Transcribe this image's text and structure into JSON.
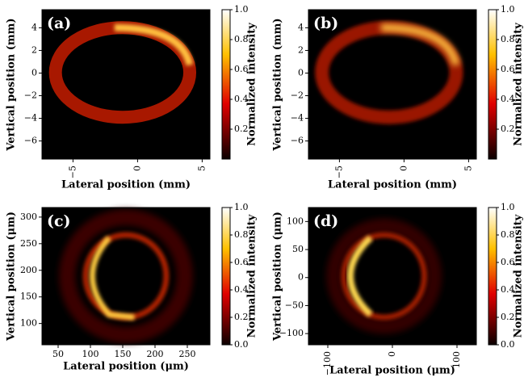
{
  "chart_data": [
    {
      "type": "heatmap",
      "panel_label": "(a)",
      "xlabel": "Lateral position (mm)",
      "ylabel": "Vertical position (mm)",
      "xlim": [
        -7.4,
        5.6
      ],
      "xticks": [
        {
          "value": -5,
          "label": "−5"
        },
        0,
        5
      ],
      "xtick_rotation": 90,
      "ylim": [
        -7.6,
        5.6
      ],
      "yticks": [
        {
          "value": -6,
          "label": "−6"
        },
        {
          "value": -4,
          "label": "−4"
        },
        {
          "value": -2,
          "label": "−2"
        },
        0,
        2,
        4
      ],
      "colorbar_label": "Normalized intensity",
      "clim": [
        0,
        1
      ],
      "cticks": [
        0.2,
        0.4,
        0.6,
        0.8,
        {
          "value": 1,
          "label": "1.0"
        }
      ],
      "colormap": "hot"
    },
    {
      "type": "heatmap",
      "panel_label": "(b)",
      "xlabel": "Lateral position (mm)",
      "ylabel": "Vertical position (mm)",
      "xlim": [
        -7.4,
        5.6
      ],
      "xticks": [
        {
          "value": -5,
          "label": "−5"
        },
        0,
        5
      ],
      "xtick_rotation": 90,
      "ylim": [
        -7.6,
        5.6
      ],
      "yticks": [
        {
          "value": -6,
          "label": "−6"
        },
        {
          "value": -4,
          "label": "−4"
        },
        {
          "value": -2,
          "label": "−2"
        },
        0,
        2,
        4
      ],
      "colorbar_label": "Normalized intensity",
      "clim": [
        0,
        1
      ],
      "cticks": [
        0.2,
        0.4,
        0.6,
        0.8,
        {
          "value": 1,
          "label": "1.0"
        }
      ],
      "colormap": "hot"
    },
    {
      "type": "heatmap",
      "panel_label": "(c)",
      "xlabel": "Lateral position (μm)",
      "ylabel": "Vertical position (μm)",
      "xlim": [
        25,
        285
      ],
      "xticks": [
        50,
        100,
        150,
        200,
        250
      ],
      "xtick_rotation": 0,
      "ylim": [
        60,
        318
      ],
      "yticks": [
        100,
        150,
        200,
        250,
        300
      ],
      "colorbar_label": "Normalized intensity",
      "clim": [
        0,
        1
      ],
      "cticks": [
        {
          "value": 0,
          "label": "0.0"
        },
        0.2,
        0.4,
        0.6,
        0.8,
        {
          "value": 1,
          "label": "1.0"
        }
      ],
      "colormap": "hot"
    },
    {
      "type": "heatmap",
      "panel_label": "(d)",
      "xlabel": "Lateral position (μm)",
      "ylabel": "Vertical position (μm)",
      "xlim": [
        -130,
        130
      ],
      "xticks": [
        {
          "value": -100,
          "label": "−100"
        },
        0,
        100
      ],
      "xtick_rotation": 90,
      "ylim": [
        -120,
        125
      ],
      "yticks": [
        {
          "value": -100,
          "label": "−100"
        },
        {
          "value": -50,
          "label": "−50"
        },
        0,
        50,
        100
      ],
      "colorbar_label": "Normalized intensity",
      "clim": [
        0,
        1
      ],
      "cticks": [
        {
          "value": 0,
          "label": "0.0"
        },
        0.2,
        0.4,
        0.6,
        0.8,
        {
          "value": 1,
          "label": "1.0"
        }
      ],
      "colormap": "hot"
    }
  ]
}
